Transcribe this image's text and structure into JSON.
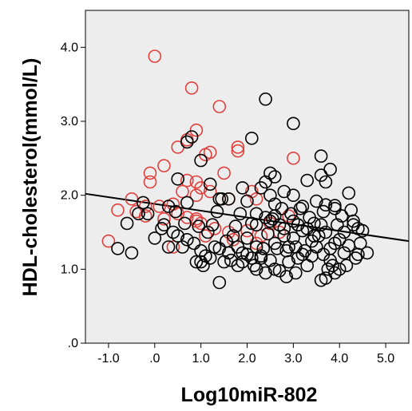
{
  "chart_data": {
    "type": "scatter",
    "xlabel": "Log10miR-802",
    "ylabel": "HDL-cholesterol(mmol/L)",
    "xlim": [
      -1.5,
      5.5
    ],
    "ylim": [
      0,
      4.5
    ],
    "x_ticks": [
      -1.0,
      0.0,
      1.0,
      2.0,
      3.0,
      4.0,
      5.0
    ],
    "x_tick_labels": [
      "-1.0",
      ".0",
      "1.0",
      "2.0",
      "3.0",
      "4.0",
      "5.0"
    ],
    "y_ticks": [
      0,
      1.0,
      2.0,
      3.0,
      4.0
    ],
    "y_tick_labels": [
      ".0",
      "1.0",
      "2.0",
      "3.0",
      "4.0"
    ],
    "grid": false,
    "legend": "none",
    "background_color": "#ededed",
    "fit_line": {
      "x": [
        -1.5,
        5.5
      ],
      "y": [
        2.02,
        1.38
      ]
    },
    "series": [
      {
        "color": "#e0403c",
        "points": [
          [
            0.0,
            3.88
          ],
          [
            0.8,
            3.45
          ],
          [
            1.4,
            3.2
          ],
          [
            0.9,
            2.88
          ],
          [
            1.2,
            2.58
          ],
          [
            0.7,
            2.75
          ],
          [
            1.8,
            2.65
          ],
          [
            1.8,
            2.6
          ],
          [
            3.0,
            2.5
          ],
          [
            0.5,
            2.65
          ],
          [
            1.1,
            2.55
          ],
          [
            1.5,
            2.3
          ],
          [
            -0.1,
            2.3
          ],
          [
            0.2,
            2.4
          ],
          [
            -0.1,
            2.18
          ],
          [
            0.7,
            2.2
          ],
          [
            0.9,
            2.18
          ],
          [
            0.6,
            2.05
          ],
          [
            1.0,
            2.1
          ],
          [
            1.2,
            2.05
          ],
          [
            0.9,
            2.0
          ],
          [
            1.6,
            1.95
          ],
          [
            2.1,
            2.05
          ],
          [
            2.2,
            1.95
          ],
          [
            -0.5,
            1.95
          ],
          [
            -0.2,
            1.85
          ],
          [
            0.1,
            1.85
          ],
          [
            0.4,
            1.88
          ],
          [
            0.5,
            1.75
          ],
          [
            -0.8,
            1.8
          ],
          [
            -0.4,
            1.78
          ],
          [
            -0.2,
            1.72
          ],
          [
            0.2,
            1.68
          ],
          [
            0.7,
            1.7
          ],
          [
            0.9,
            1.68
          ],
          [
            1.0,
            1.62
          ],
          [
            1.3,
            1.55
          ],
          [
            1.6,
            1.5
          ],
          [
            2.0,
            1.52
          ],
          [
            2.2,
            1.35
          ],
          [
            2.5,
            1.62
          ],
          [
            2.9,
            1.72
          ],
          [
            -1.0,
            1.38
          ],
          [
            0.4,
            1.3
          ],
          [
            0.9,
            1.65
          ],
          [
            1.1,
            1.45
          ],
          [
            1.7,
            1.4
          ],
          [
            2.3,
            1.45
          ],
          [
            2.7,
            1.5
          ]
        ]
      },
      {
        "color": "#000000",
        "points": [
          [
            2.4,
            3.3
          ],
          [
            3.0,
            2.97
          ],
          [
            2.1,
            2.77
          ],
          [
            0.8,
            2.79
          ],
          [
            0.7,
            2.72
          ],
          [
            1.0,
            2.47
          ],
          [
            3.6,
            2.53
          ],
          [
            3.8,
            2.35
          ],
          [
            3.3,
            2.2
          ],
          [
            3.6,
            2.27
          ],
          [
            3.7,
            2.18
          ],
          [
            2.5,
            2.3
          ],
          [
            2.6,
            2.25
          ],
          [
            2.4,
            2.18
          ],
          [
            2.3,
            2.1
          ],
          [
            2.8,
            2.05
          ],
          [
            3.0,
            2.0
          ],
          [
            0.5,
            2.22
          ],
          [
            1.2,
            2.15
          ],
          [
            1.9,
            2.1
          ],
          [
            1.6,
            1.95
          ],
          [
            2.5,
            2.0
          ],
          [
            4.2,
            2.03
          ],
          [
            0.3,
            1.85
          ],
          [
            1.4,
            1.95
          ],
          [
            2.0,
            1.92
          ],
          [
            2.6,
            1.88
          ],
          [
            3.2,
            1.85
          ],
          [
            3.7,
            1.87
          ],
          [
            3.9,
            1.86
          ],
          [
            -0.6,
            1.62
          ],
          [
            -0.8,
            1.28
          ],
          [
            -0.5,
            1.22
          ],
          [
            0.0,
            1.42
          ],
          [
            0.3,
            1.3
          ],
          [
            0.2,
            1.6
          ],
          [
            0.4,
            1.5
          ],
          [
            0.5,
            1.45
          ],
          [
            0.7,
            1.9
          ],
          [
            0.7,
            1.4
          ],
          [
            0.9,
            1.1
          ],
          [
            1.0,
            1.25
          ],
          [
            1.1,
            1.18
          ],
          [
            1.2,
            1.15
          ],
          [
            1.3,
            1.3
          ],
          [
            1.4,
            1.28
          ],
          [
            1.5,
            1.1
          ],
          [
            1.6,
            1.22
          ],
          [
            1.7,
            1.45
          ],
          [
            1.8,
            1.3
          ],
          [
            1.9,
            1.1
          ],
          [
            2.0,
            1.2
          ],
          [
            2.1,
            1.15
          ],
          [
            2.2,
            1.3
          ],
          [
            2.3,
            1.18
          ],
          [
            2.4,
            1.7
          ],
          [
            2.5,
            1.65
          ],
          [
            2.6,
            1.72
          ],
          [
            2.7,
            1.6
          ],
          [
            2.8,
            1.55
          ],
          [
            2.9,
            1.3
          ],
          [
            3.0,
            1.65
          ],
          [
            3.1,
            1.6
          ],
          [
            3.2,
            1.52
          ],
          [
            3.3,
            1.55
          ],
          [
            3.4,
            1.38
          ],
          [
            3.5,
            1.3
          ],
          [
            3.6,
            1.6
          ],
          [
            3.7,
            1.5
          ],
          [
            3.8,
            1.28
          ],
          [
            3.9,
            1.35
          ],
          [
            4.0,
            1.4
          ],
          [
            4.1,
            1.5
          ],
          [
            4.2,
            1.32
          ],
          [
            4.3,
            1.6
          ],
          [
            4.4,
            1.55
          ],
          [
            4.5,
            1.52
          ],
          [
            4.4,
            1.2
          ],
          [
            4.6,
            1.22
          ],
          [
            4.0,
            1.0
          ],
          [
            3.9,
            0.95
          ],
          [
            3.7,
            0.88
          ],
          [
            3.6,
            0.85
          ],
          [
            3.3,
            1.05
          ],
          [
            3.1,
            1.15
          ],
          [
            2.9,
            1.1
          ],
          [
            2.7,
            0.98
          ],
          [
            2.6,
            1.0
          ],
          [
            2.5,
            1.12
          ],
          [
            2.4,
            0.95
          ],
          [
            2.3,
            1.15
          ],
          [
            2.2,
            1.0
          ],
          [
            1.4,
            0.82
          ],
          [
            1.0,
            1.1
          ],
          [
            1.8,
            1.05
          ],
          [
            1.9,
            1.22
          ],
          [
            2.0,
            1.42
          ],
          [
            2.1,
            1.62
          ],
          [
            2.2,
            1.75
          ],
          [
            2.6,
            1.35
          ],
          [
            2.8,
            1.45
          ],
          [
            3.0,
            1.42
          ],
          [
            3.2,
            1.2
          ],
          [
            3.4,
            1.18
          ],
          [
            3.8,
            1.12
          ],
          [
            3.95,
            1.6
          ],
          [
            4.05,
            1.72
          ],
          [
            4.1,
            1.22
          ],
          [
            4.15,
            1.05
          ],
          [
            4.25,
            1.8
          ],
          [
            4.3,
            1.65
          ],
          [
            3.75,
            1.0
          ],
          [
            3.85,
            1.05
          ],
          [
            3.45,
            1.62
          ],
          [
            3.55,
            1.45
          ],
          [
            3.65,
            1.78
          ],
          [
            3.35,
            1.7
          ],
          [
            3.15,
            1.82
          ],
          [
            2.95,
            1.75
          ],
          [
            2.75,
            1.82
          ],
          [
            2.55,
            1.68
          ],
          [
            2.45,
            1.48
          ],
          [
            1.75,
            1.58
          ],
          [
            1.55,
            1.38
          ],
          [
            1.35,
            1.78
          ],
          [
            1.25,
            1.6
          ],
          [
            1.15,
            1.5
          ],
          [
            0.95,
            1.58
          ],
          [
            0.85,
            1.35
          ],
          [
            0.65,
            1.62
          ],
          [
            0.45,
            1.78
          ],
          [
            0.15,
            1.55
          ],
          [
            -0.15,
            1.75
          ],
          [
            -0.35,
            1.75
          ],
          [
            -0.25,
            1.9
          ],
          [
            0.6,
            1.3
          ],
          [
            1.05,
            1.05
          ],
          [
            1.65,
            1.12
          ],
          [
            2.15,
            1.05
          ],
          [
            2.35,
            1.28
          ],
          [
            2.65,
            1.28
          ],
          [
            2.85,
            1.25
          ],
          [
            3.05,
            1.3
          ],
          [
            3.25,
            1.25
          ],
          [
            3.45,
            1.45
          ],
          [
            3.65,
            1.2
          ],
          [
            4.35,
            1.15
          ],
          [
            4.45,
            1.35
          ],
          [
            3.9,
            1.82
          ],
          [
            3.5,
            1.92
          ],
          [
            2.85,
            0.9
          ],
          [
            3.05,
            0.95
          ],
          [
            1.45,
            1.95
          ],
          [
            1.85,
            1.75
          ],
          [
            3.1,
            1.6
          ],
          [
            2.2,
            1.6
          ]
        ]
      }
    ]
  }
}
